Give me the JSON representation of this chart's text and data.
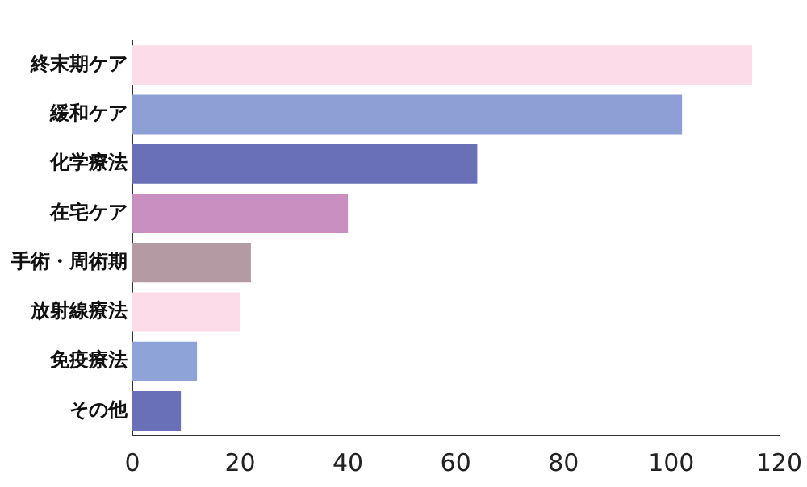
{
  "chart_data": {
    "type": "bar",
    "orientation": "horizontal",
    "categories": [
      "終末期ケア",
      "緩和ケア",
      "化学療法",
      "在宅ケア",
      "手術・周術期",
      "放射線療法",
      "免疫療法",
      "その他"
    ],
    "values": [
      115,
      102,
      64,
      40,
      22,
      20,
      12,
      9
    ],
    "colors": [
      "#fcdce8",
      "#8e9fd6",
      "#6a70b8",
      "#c98fc0",
      "#b39aa3",
      "#fcdce8",
      "#8ea4d8",
      "#6a70b8"
    ],
    "xlim": [
      0,
      120
    ],
    "xticks": [
      0,
      20,
      40,
      60,
      80,
      100,
      120
    ],
    "grid": false,
    "legend": false
  }
}
